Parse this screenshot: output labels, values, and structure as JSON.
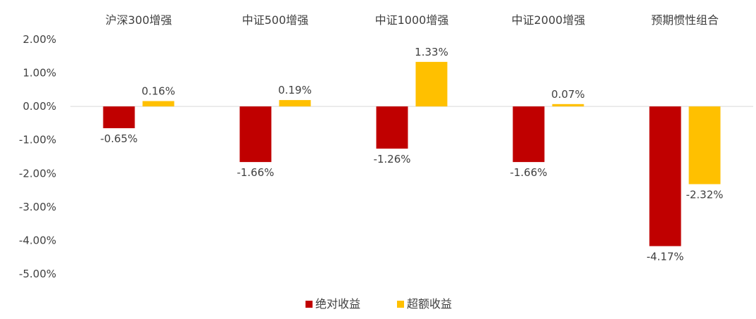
{
  "chart_data": {
    "type": "bar",
    "categories": [
      "沪深300增强",
      "中证500增强",
      "中证1000增强",
      "中证2000增强",
      "预期惯性组合"
    ],
    "series": [
      {
        "name": "绝对收益",
        "color": "#C00000",
        "values": [
          -0.65,
          -1.66,
          -1.26,
          -1.66,
          -4.17
        ],
        "labels": [
          "-0.65%",
          "-1.66%",
          "-1.26%",
          "-1.66%",
          "-4.17%"
        ]
      },
      {
        "name": "超额收益",
        "color": "#FFC000",
        "values": [
          0.16,
          0.19,
          1.33,
          0.07,
          -2.32
        ],
        "labels": [
          "0.16%",
          "0.19%",
          "1.33%",
          "0.07%",
          "-2.32%"
        ]
      }
    ],
    "ylim": [
      -5,
      2
    ],
    "yticks": [
      2,
      1,
      0,
      -1,
      -2,
      -3,
      -4,
      -5
    ],
    "ytick_labels": [
      "2.00%",
      "1.00%",
      "0.00%",
      "-1.00%",
      "-2.00%",
      "-3.00%",
      "-4.00%",
      "-5.00%"
    ],
    "category_position": "top",
    "grid": false,
    "legend_position": "bottom"
  }
}
